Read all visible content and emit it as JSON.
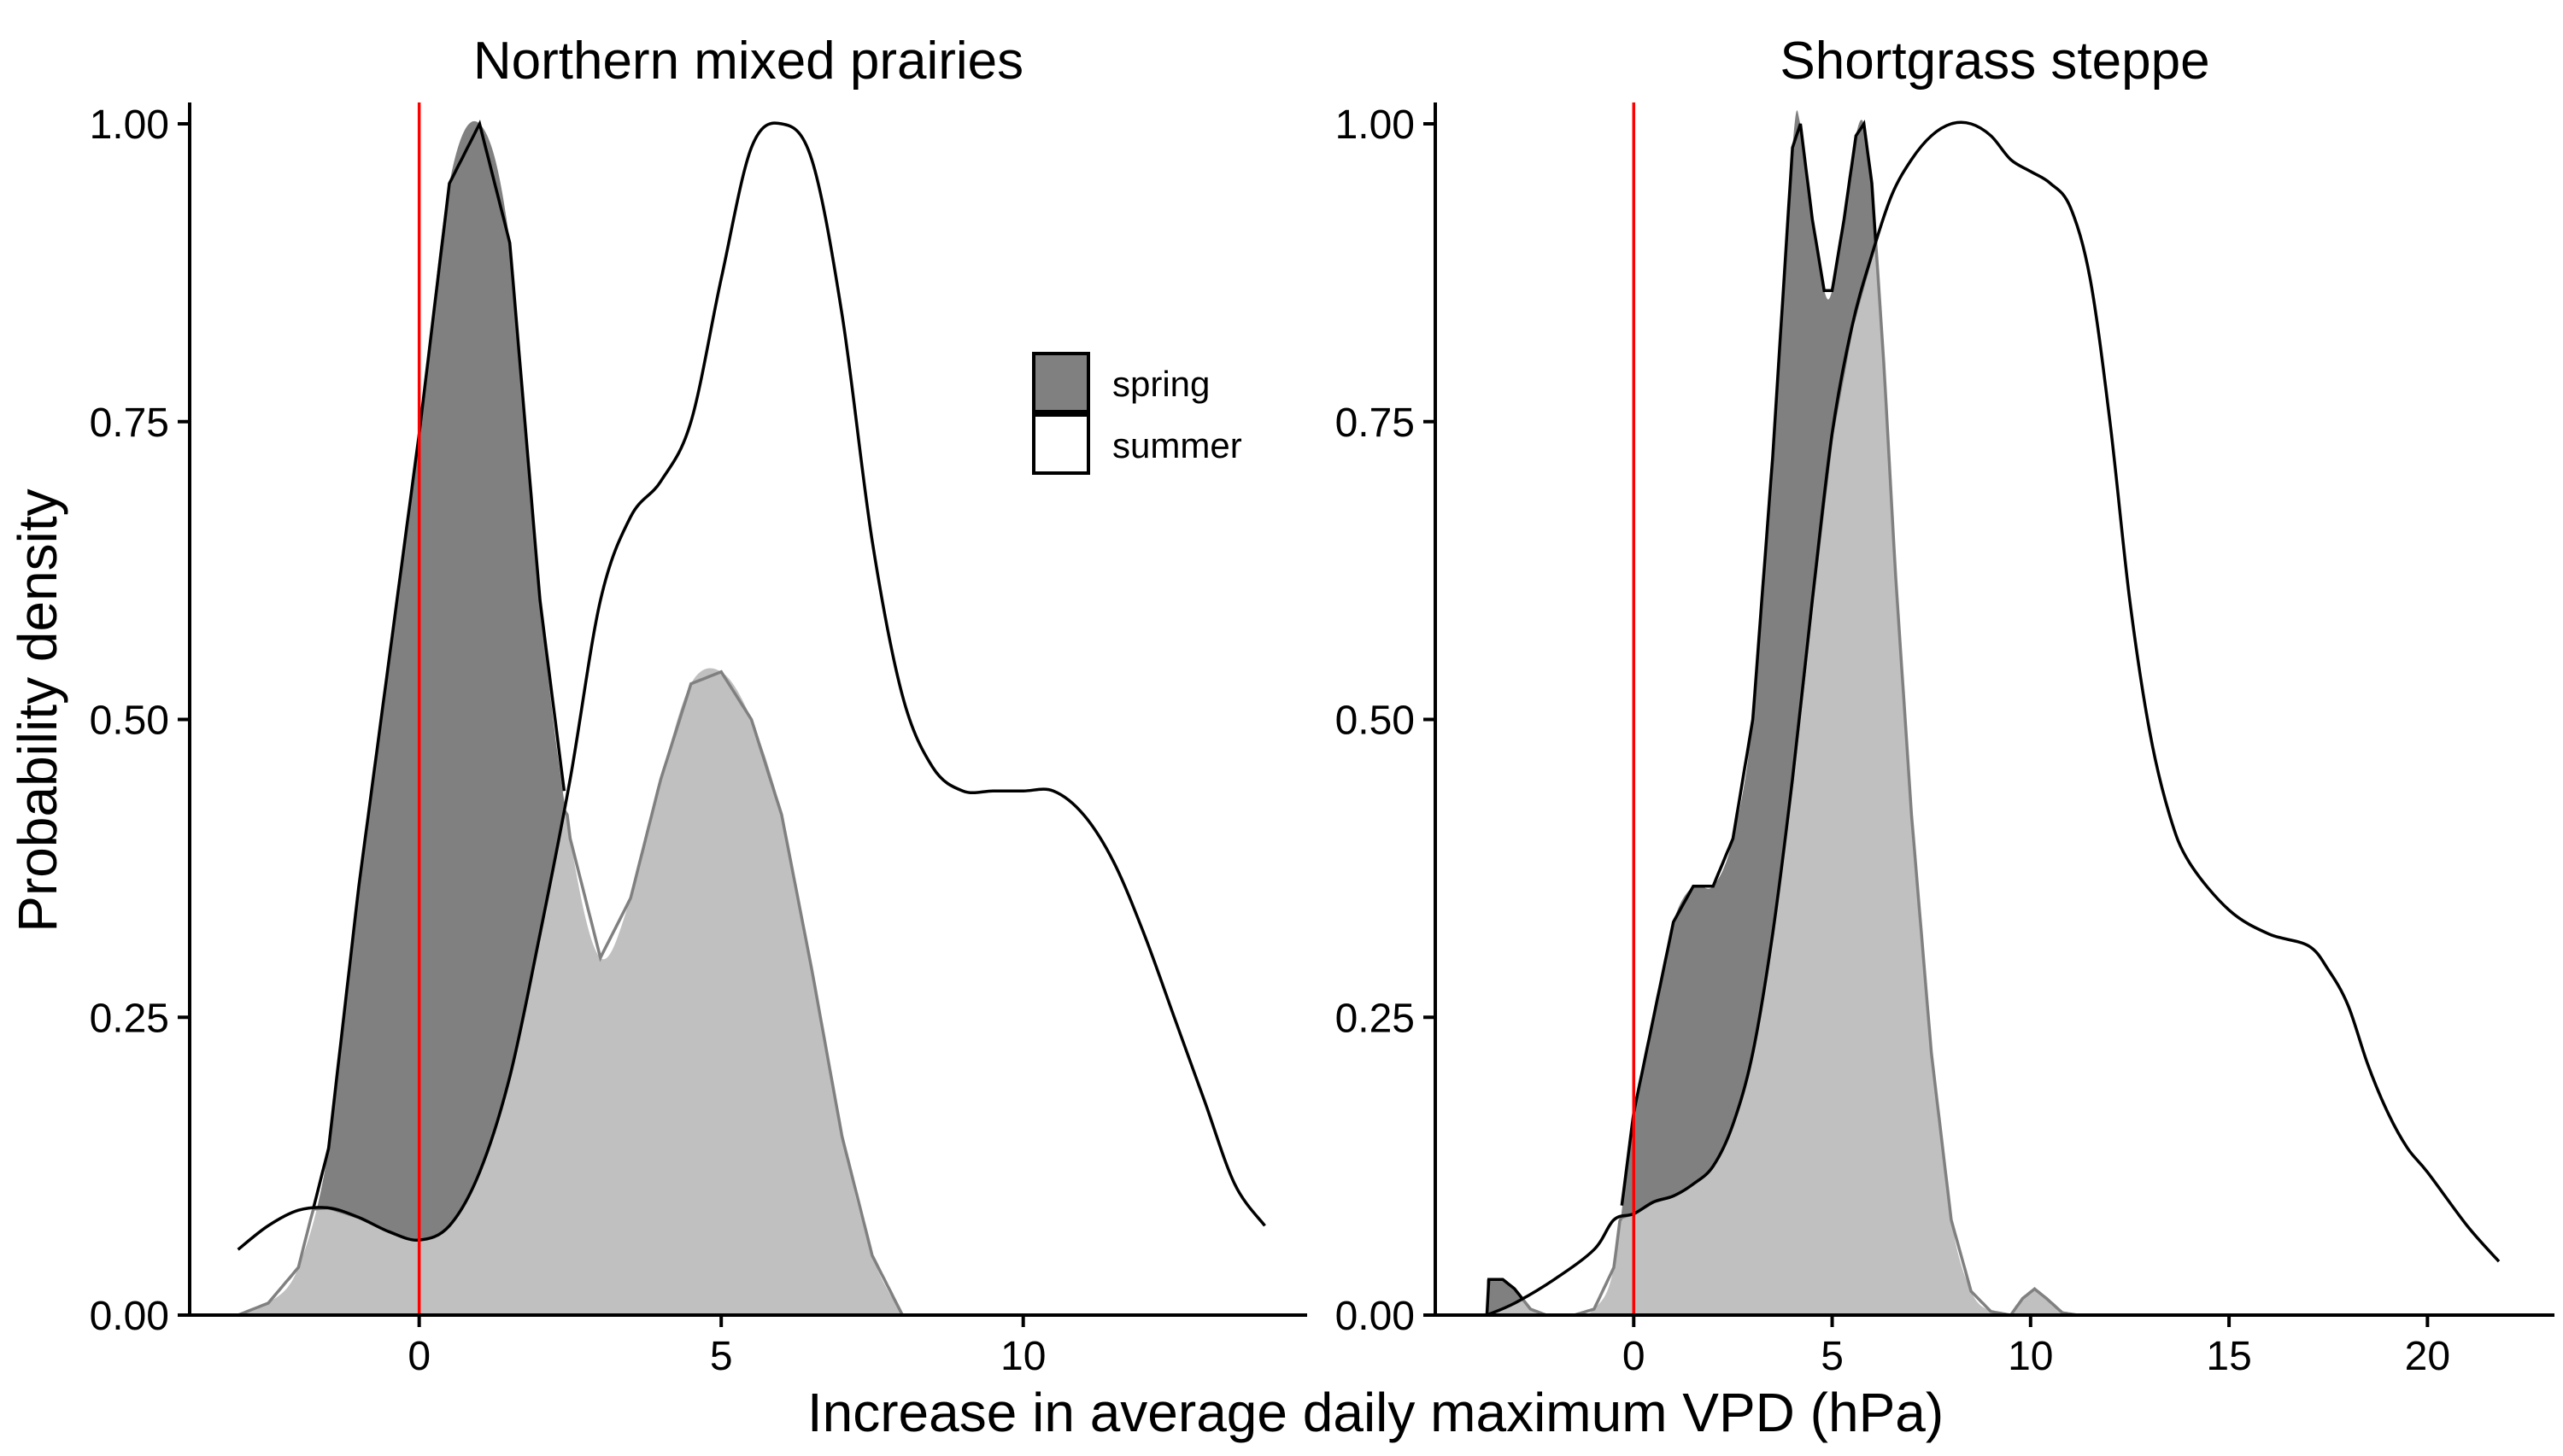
{
  "figure": {
    "xlabel": "Increase in average daily maximum VPD (hPa)",
    "ylabel": "Probability density"
  },
  "legend": {
    "items": [
      {
        "label": "spring",
        "fill": "#808080",
        "stroke": "#000000"
      },
      {
        "label": "summer",
        "fill": "#ffffff",
        "stroke": "#000000"
      }
    ]
  },
  "colors": {
    "spring_fill": "#808080",
    "summer_fill": "#ffffff",
    "summer_line": "#000000",
    "overlap_fill": "#c0c0c0",
    "overlap_line": "#808080",
    "reference_line": "#ff0000"
  },
  "chart_data": [
    {
      "type": "area",
      "title": "Northern mixed prairies",
      "xlabel": "Increase in average daily maximum VPD (hPa)",
      "ylabel": "Probability density",
      "xlim": [
        -3.8,
        14.7
      ],
      "ylim": [
        0,
        1.0
      ],
      "xticks": [
        0,
        5,
        10
      ],
      "yticks": [
        0.0,
        0.25,
        0.5,
        0.75,
        1.0
      ],
      "ytick_labels": [
        "0.00",
        "0.25",
        "0.50",
        "0.75",
        "1.00"
      ],
      "reference_x": 0,
      "legend": "inside, upper right",
      "grid": false,
      "series": [
        {
          "name": "spring",
          "x": [
            -3.0,
            -2.5,
            -2.0,
            -1.5,
            -1.0,
            -0.5,
            0.0,
            0.5,
            1.0,
            1.5,
            2.0,
            2.5,
            3.0,
            3.5,
            4.0,
            4.5,
            5.0,
            5.5,
            6.0,
            6.5,
            7.0,
            7.5,
            8.0
          ],
          "y": [
            0.0,
            0.01,
            0.04,
            0.14,
            0.36,
            0.55,
            0.74,
            0.95,
            1.0,
            0.9,
            0.6,
            0.4,
            0.3,
            0.35,
            0.45,
            0.53,
            0.54,
            0.5,
            0.42,
            0.29,
            0.15,
            0.05,
            0.0
          ]
        },
        {
          "name": "summer",
          "x": [
            -3.0,
            -2.5,
            -2.0,
            -1.5,
            -1.0,
            -0.5,
            0.0,
            0.5,
            1.0,
            1.5,
            2.0,
            2.5,
            3.0,
            3.5,
            4.0,
            4.5,
            5.0,
            5.5,
            6.0,
            6.5,
            7.0,
            7.5,
            8.0,
            8.5,
            9.0,
            9.5,
            10.0,
            10.5,
            11.0,
            11.5,
            12.0,
            12.5,
            13.0,
            13.5,
            14.0
          ],
          "y": [
            0.055,
            0.075,
            0.088,
            0.09,
            0.082,
            0.07,
            0.063,
            0.075,
            0.12,
            0.2,
            0.32,
            0.45,
            0.6,
            0.67,
            0.7,
            0.75,
            0.87,
            0.98,
            1.0,
            0.97,
            0.84,
            0.65,
            0.52,
            0.46,
            0.44,
            0.44,
            0.44,
            0.44,
            0.42,
            0.38,
            0.32,
            0.25,
            0.18,
            0.11,
            0.075
          ]
        }
      ]
    },
    {
      "type": "area",
      "title": "Shortgrass steppe",
      "xlabel": "Increase in average daily maximum VPD (hPa)",
      "ylabel": "Probability density",
      "xlim": [
        -5.0,
        23.2
      ],
      "ylim": [
        0,
        1.0
      ],
      "xticks": [
        0,
        5,
        10,
        15,
        20
      ],
      "yticks": [
        0.0,
        0.25,
        0.5,
        0.75,
        1.0
      ],
      "ytick_labels": [
        "0.00",
        "0.25",
        "0.50",
        "0.75",
        "1.00"
      ],
      "reference_x": 0,
      "legend": "none",
      "grid": false,
      "series": [
        {
          "name": "spring",
          "x": [
            -3.7,
            -3.3,
            -3.0,
            -2.6,
            -2.2,
            -1.5,
            -1.0,
            -0.5,
            0.0,
            0.5,
            1.0,
            1.5,
            2.0,
            2.5,
            3.0,
            3.5,
            4.0,
            4.2,
            4.5,
            4.8,
            5.0,
            5.3,
            5.6,
            5.8,
            6.0,
            6.3,
            6.6,
            7.0,
            7.5,
            8.0,
            8.5,
            9.0,
            9.5,
            9.8,
            10.1,
            10.4,
            10.8,
            11.2
          ],
          "y": [
            0.03,
            0.03,
            0.022,
            0.005,
            0.0,
            0.0,
            0.005,
            0.04,
            0.17,
            0.25,
            0.33,
            0.36,
            0.36,
            0.4,
            0.5,
            0.72,
            0.98,
            1.0,
            0.92,
            0.86,
            0.86,
            0.92,
            0.99,
            1.0,
            0.95,
            0.8,
            0.62,
            0.42,
            0.22,
            0.08,
            0.02,
            0.003,
            0.0,
            0.014,
            0.022,
            0.014,
            0.002,
            0.0
          ]
        },
        {
          "name": "summer",
          "x": [
            -3.7,
            -3.0,
            -2.0,
            -1.0,
            -0.5,
            0.0,
            0.5,
            1.0,
            1.5,
            2.0,
            2.5,
            3.0,
            3.5,
            4.0,
            4.5,
            5.0,
            5.5,
            6.0,
            6.5,
            7.0,
            7.5,
            8.0,
            8.5,
            9.0,
            9.5,
            10.0,
            10.5,
            11.0,
            11.5,
            12.0,
            12.5,
            13.0,
            13.5,
            14.0,
            15.0,
            16.0,
            17.0,
            17.5,
            18.0,
            18.5,
            19.0,
            19.5,
            20.0,
            21.0,
            21.8
          ],
          "y": [
            0.0,
            0.01,
            0.03,
            0.055,
            0.08,
            0.085,
            0.095,
            0.1,
            0.11,
            0.125,
            0.16,
            0.22,
            0.32,
            0.45,
            0.6,
            0.74,
            0.83,
            0.89,
            0.94,
            0.97,
            0.99,
            1.0,
            1.0,
            0.99,
            0.97,
            0.96,
            0.95,
            0.93,
            0.87,
            0.75,
            0.6,
            0.49,
            0.42,
            0.38,
            0.34,
            0.32,
            0.31,
            0.29,
            0.26,
            0.21,
            0.17,
            0.14,
            0.12,
            0.075,
            0.045
          ]
        }
      ]
    }
  ]
}
